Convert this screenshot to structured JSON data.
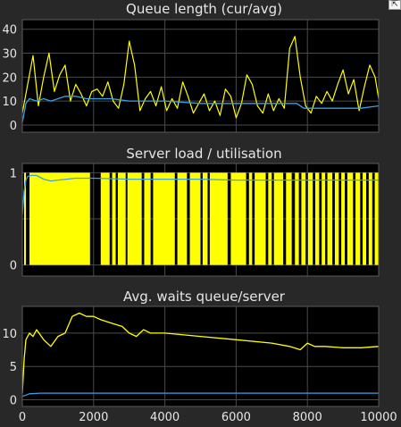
{
  "toolbar": {
    "expand_icon": "expand-arrow-icon"
  },
  "colors": {
    "background": "#282828",
    "axes_bg": "#000000",
    "grid": "#4a4a4a",
    "series_current": "#ffff00",
    "series_average": "#3aa0e6",
    "text": "#e6e6e6"
  },
  "chart_data": [
    {
      "type": "line",
      "title": "Queue length (cur/avg)",
      "xlim": [
        0,
        10000
      ],
      "ylim": [
        -3,
        44
      ],
      "yticks": [
        0,
        10,
        20,
        30,
        40
      ],
      "grid": true,
      "series": [
        {
          "role": "current",
          "color": "#ffff00",
          "x": [
            0,
            150,
            300,
            450,
            600,
            750,
            900,
            1050,
            1200,
            1350,
            1500,
            1650,
            1800,
            1950,
            2100,
            2250,
            2400,
            2550,
            2700,
            2850,
            3000,
            3150,
            3300,
            3450,
            3600,
            3750,
            3900,
            4050,
            4200,
            4350,
            4500,
            4650,
            4800,
            4950,
            5100,
            5250,
            5400,
            5550,
            5700,
            5850,
            6000,
            6150,
            6300,
            6450,
            6600,
            6750,
            6900,
            7050,
            7200,
            7350,
            7500,
            7650,
            7800,
            7950,
            8100,
            8250,
            8400,
            8550,
            8700,
            8850,
            9000,
            9150,
            9300,
            9450,
            9600,
            9750,
            9900,
            10000
          ],
          "y": [
            5,
            17,
            29,
            8,
            20,
            30,
            14,
            21,
            25,
            10,
            17,
            13,
            8,
            14,
            15,
            12,
            18,
            10,
            7,
            17,
            35,
            25,
            6,
            11,
            14,
            8,
            16,
            6,
            11,
            7,
            18,
            12,
            5,
            9,
            13,
            6,
            10,
            4,
            15,
            12,
            3,
            9,
            21,
            17,
            8,
            5,
            13,
            6,
            11,
            7,
            32,
            37,
            20,
            8,
            5,
            12,
            9,
            14,
            10,
            17,
            23,
            13,
            19,
            6,
            16,
            25,
            20,
            11
          ]
        },
        {
          "role": "average",
          "color": "#3aa0e6",
          "x": [
            0,
            100,
            200,
            400,
            600,
            800,
            1000,
            1200,
            1500,
            1800,
            2000,
            2500,
            3000,
            3500,
            4000,
            5000,
            6000,
            7000,
            7700,
            7900,
            8500,
            9000,
            9500,
            10000
          ],
          "y": [
            1,
            9,
            11,
            10,
            11,
            10,
            11,
            12,
            12,
            11,
            11,
            11,
            10,
            10,
            10,
            9,
            9,
            9,
            9,
            7,
            7,
            7,
            7,
            8
          ]
        }
      ]
    },
    {
      "type": "line",
      "title": "Server load / utilisation",
      "xlim": [
        0,
        10000
      ],
      "ylim": [
        -0.12,
        1.1
      ],
      "yticks": [
        0,
        0.5,
        1
      ],
      "ytick_labels": [
        "0",
        "",
        "1"
      ],
      "grid": true,
      "idle_intervals": [
        [
          0,
          50
        ],
        [
          100,
          200
        ],
        [
          1900,
          2200
        ],
        [
          2450,
          2520
        ],
        [
          2620,
          2680
        ],
        [
          2900,
          2950
        ],
        [
          3350,
          3420
        ],
        [
          3600,
          3670
        ],
        [
          4280,
          4350
        ],
        [
          4620,
          4700
        ],
        [
          5000,
          5060
        ],
        [
          5200,
          5260
        ],
        [
          5760,
          5850
        ],
        [
          6280,
          6360
        ],
        [
          6450,
          6520
        ],
        [
          6830,
          6900
        ],
        [
          7000,
          7060
        ],
        [
          7320,
          7400
        ],
        [
          7560,
          7650
        ],
        [
          7760,
          7830
        ],
        [
          7950,
          8020
        ],
        [
          8150,
          8220
        ],
        [
          8330,
          8400
        ],
        [
          8500,
          8560
        ],
        [
          8700,
          8770
        ],
        [
          8880,
          8950
        ],
        [
          9050,
          9120
        ],
        [
          9280,
          9350
        ],
        [
          9480,
          9550
        ],
        [
          9650,
          9720
        ],
        [
          9820,
          9890
        ]
      ],
      "series": [
        {
          "role": "current",
          "color": "#ffff00",
          "levels": [
            0,
            1
          ]
        },
        {
          "role": "average",
          "color": "#3aa0e6",
          "x": [
            0,
            50,
            100,
            150,
            250,
            400,
            600,
            800,
            1000,
            1500,
            2000,
            3000,
            4000,
            5000,
            6000,
            7000,
            8000,
            9000,
            10000
          ],
          "y": [
            0.55,
            0.8,
            0.92,
            0.96,
            0.97,
            0.97,
            0.93,
            0.91,
            0.92,
            0.94,
            0.94,
            0.93,
            0.93,
            0.93,
            0.92,
            0.92,
            0.92,
            0.92,
            0.92
          ]
        }
      ]
    },
    {
      "type": "line",
      "title": "Avg. waits queue/server",
      "xlim": [
        0,
        10000
      ],
      "ylim": [
        -1,
        14
      ],
      "yticks": [
        0,
        5,
        10
      ],
      "xticks": [
        0,
        2000,
        4000,
        6000,
        8000,
        10000
      ],
      "grid": true,
      "series": [
        {
          "role": "queue",
          "color": "#ffff00",
          "x": [
            0,
            50,
            100,
            200,
            300,
            400,
            600,
            800,
            1000,
            1200,
            1400,
            1600,
            1800,
            2000,
            2200,
            2500,
            2800,
            3000,
            3200,
            3400,
            3600,
            4000,
            5000,
            6000,
            7000,
            7500,
            7800,
            8000,
            8200,
            8500,
            9000,
            9500,
            10000
          ],
          "y": [
            1,
            6,
            9,
            10,
            9.5,
            10.5,
            9,
            8,
            9.5,
            10,
            12.5,
            13,
            12.5,
            12.5,
            12,
            11.5,
            11,
            10,
            9.5,
            10.5,
            10,
            10,
            9.5,
            9,
            8.5,
            8,
            7.5,
            8.5,
            8,
            8,
            7.8,
            7.8,
            8
          ]
        },
        {
          "role": "server",
          "color": "#3aa0e6",
          "x": [
            0,
            200,
            500,
            1000,
            3000,
            6000,
            10000
          ],
          "y": [
            0.5,
            0.9,
            1,
            1,
            1,
            1,
            1
          ]
        }
      ]
    }
  ]
}
